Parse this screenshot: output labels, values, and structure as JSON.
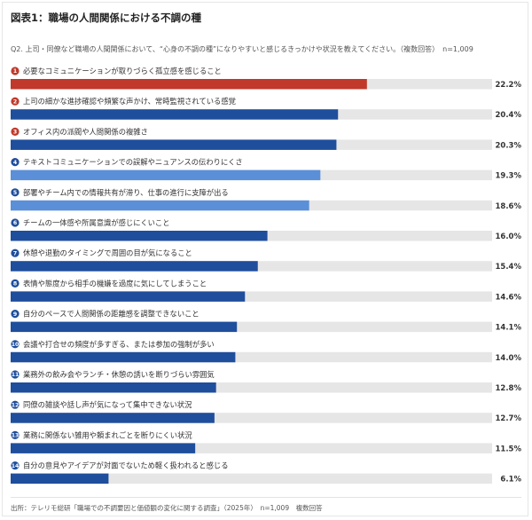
{
  "title": "図表1：職場の人間関係における不調の種",
  "question": "Q2. 上司・同僚など職場の人間関係において、“心身の不調の種”になりやすいと感じるきっかけや状況を教えてください。（複数回答）　n=1,009",
  "source": "出所：テレリモ総研「職場での不調要因と価値観の変化に関する調査」（2025年）　n=1,009　複数回答",
  "colors": {
    "top": "#c0392b",
    "dark": "#1f4e9c",
    "light": "#5b8fd8",
    "track": "#e6e6e6"
  },
  "chart_data": {
    "type": "bar",
    "orientation": "horizontal",
    "value_unit": "%",
    "xlim": [
      0,
      100
    ],
    "categories": [
      "必要なコミュニケーションが取りづらく孤立感を感じること",
      "上司の細かな進捗確認や頻繁な声かけ、常時監視されている感覚",
      "オフィス内の派閥や人間関係の複雑さ",
      "テキストコミュニケーションでの誤解やニュアンスの伝わりにくさ",
      "部署やチーム内での情報共有が滞り、仕事の進行に支障が出る",
      "チームの一体感や所属意識が感じにくいこと",
      "休憩や退勤のタイミングで周囲の目が気になること",
      "表情や態度から相手の機嫌を過度に気にしてしまうこと",
      "自分のペースで人間関係の距離感を調整できないこと",
      "会議や打合せの頻度が多すぎる、または参加の強制が多い",
      "業務外の飲み会やランチ・休憩の誘いを断りづらい雰囲気",
      "同僚の雑談や話し声が気になって集中できない状況",
      "業務に関係ない雑用や頼まれごとを断りにくい状況",
      "自分の意見やアイデアが対面でないため軽く扱われると感じる"
    ],
    "values": [
      22.2,
      20.4,
      20.3,
      19.3,
      18.6,
      16.0,
      15.4,
      14.6,
      14.1,
      14.0,
      12.8,
      12.7,
      11.5,
      6.1
    ],
    "value_labels": [
      "22.2%",
      "20.4%",
      "20.3%",
      "19.3%",
      "18.6%",
      "16.0%",
      "15.4%",
      "14.6%",
      "14.1%",
      "14.0%",
      "12.8%",
      "12.7%",
      "11.5%",
      "6.1%"
    ],
    "rank_labels": [
      "1",
      "2",
      "3",
      "4",
      "5",
      "6",
      "7",
      "8",
      "9",
      "10",
      "11",
      "12",
      "13",
      "14"
    ],
    "bar_colors": [
      "#c0392b",
      "#1f4e9c",
      "#1f4e9c",
      "#5b8fd8",
      "#5b8fd8",
      "#1f4e9c",
      "#1f4e9c",
      "#1f4e9c",
      "#1f4e9c",
      "#1f4e9c",
      "#1f4e9c",
      "#1f4e9c",
      "#1f4e9c",
      "#1f4e9c"
    ],
    "badge_colors": [
      "#c0392b",
      "#c0392b",
      "#c0392b",
      "#1f4e9c",
      "#1f4e9c",
      "#1f4e9c",
      "#1f4e9c",
      "#1f4e9c",
      "#1f4e9c",
      "#1f4e9c",
      "#1f4e9c",
      "#1f4e9c",
      "#1f4e9c",
      "#1f4e9c"
    ]
  }
}
